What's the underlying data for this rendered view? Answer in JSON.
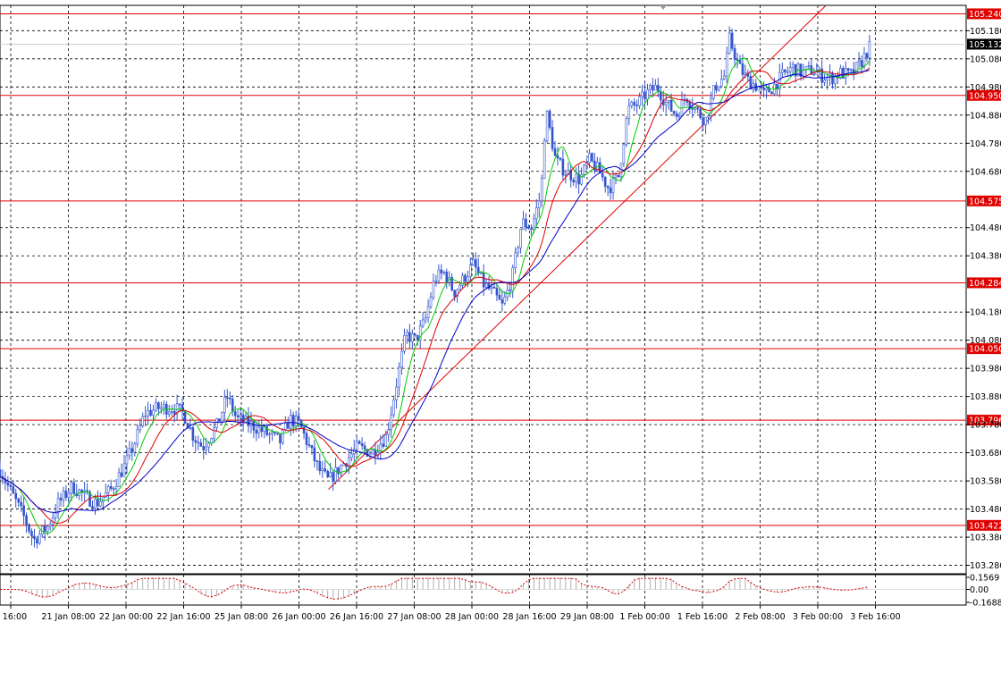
{
  "chart_data": {
    "type": "candlestick",
    "price_axis": {
      "min": 103.25,
      "max": 105.27,
      "ticks": [
        "105.180",
        "105.080",
        "104.980",
        "104.880",
        "104.780",
        "104.680",
        "104.480",
        "104.380",
        "104.180",
        "104.080",
        "103.980",
        "103.880",
        "103.780",
        "103.680",
        "103.580",
        "103.480",
        "103.380",
        "103.280"
      ]
    },
    "levels": [
      {
        "label": "105.240",
        "value": 105.24
      },
      {
        "label": "104.950",
        "value": 104.95
      },
      {
        "label": "104.575",
        "value": 104.575
      },
      {
        "label": "104.284",
        "value": 104.284
      },
      {
        "label": "104.050",
        "value": 104.05
      },
      {
        "label": "103.796",
        "value": 103.796
      },
      {
        "label": "103.422",
        "value": 103.422
      }
    ],
    "current_price": {
      "label": "105.132",
      "value": 105.132
    },
    "time_labels": [
      "20 Jan 16:00",
      "21 Jan 08:00",
      "22 Jan 00:00",
      "22 Jan 16:00",
      "25 Jan 08:00",
      "26 Jan 00:00",
      "26 Jan 16:00",
      "27 Jan 08:00",
      "28 Jan 00:00",
      "28 Jan 16:00",
      "29 Jan 08:00",
      "1 Feb 00:00",
      "1 Feb 16:00",
      "2 Feb 08:00",
      "3 Feb 00:00",
      "3 Feb 16:00"
    ],
    "oscillator": {
      "ticks": [
        "0.1569",
        "0.00",
        "-0.1688"
      ],
      "min": -0.1688,
      "max": 0.1569
    },
    "trendline": {
      "from": [
        0.34,
        103.55
      ],
      "to": [
        0.855,
        105.27
      ]
    },
    "close_path": [
      [
        0,
        103.62
      ],
      [
        0.01,
        103.55
      ],
      [
        0.025,
        103.45
      ],
      [
        0.035,
        103.37
      ],
      [
        0.05,
        103.42
      ],
      [
        0.06,
        103.5
      ],
      [
        0.075,
        103.56
      ],
      [
        0.09,
        103.52
      ],
      [
        0.1,
        103.5
      ],
      [
        0.115,
        103.55
      ],
      [
        0.13,
        103.64
      ],
      [
        0.14,
        103.72
      ],
      [
        0.15,
        103.82
      ],
      [
        0.165,
        103.84
      ],
      [
        0.18,
        103.84
      ],
      [
        0.19,
        103.82
      ],
      [
        0.2,
        103.74
      ],
      [
        0.21,
        103.7
      ],
      [
        0.225,
        103.78
      ],
      [
        0.235,
        103.88
      ],
      [
        0.245,
        103.8
      ],
      [
        0.26,
        103.78
      ],
      [
        0.275,
        103.75
      ],
      [
        0.29,
        103.72
      ],
      [
        0.3,
        103.8
      ],
      [
        0.31,
        103.78
      ],
      [
        0.32,
        103.7
      ],
      [
        0.33,
        103.62
      ],
      [
        0.34,
        103.58
      ],
      [
        0.355,
        103.64
      ],
      [
        0.37,
        103.7
      ],
      [
        0.385,
        103.68
      ],
      [
        0.4,
        103.74
      ],
      [
        0.41,
        103.92
      ],
      [
        0.42,
        104.1
      ],
      [
        0.43,
        104.08
      ],
      [
        0.44,
        104.15
      ],
      [
        0.45,
        104.3
      ],
      [
        0.46,
        104.32
      ],
      [
        0.47,
        104.25
      ],
      [
        0.48,
        104.3
      ],
      [
        0.49,
        104.35
      ],
      [
        0.5,
        104.28
      ],
      [
        0.51,
        104.25
      ],
      [
        0.52,
        104.2
      ],
      [
        0.53,
        104.3
      ],
      [
        0.54,
        104.5
      ],
      [
        0.55,
        104.48
      ],
      [
        0.56,
        104.6
      ],
      [
        0.565,
        104.9
      ],
      [
        0.575,
        104.72
      ],
      [
        0.585,
        104.68
      ],
      [
        0.6,
        104.65
      ],
      [
        0.61,
        104.72
      ],
      [
        0.62,
        104.68
      ],
      [
        0.63,
        104.62
      ],
      [
        0.64,
        104.66
      ],
      [
        0.65,
        104.9
      ],
      [
        0.66,
        104.92
      ],
      [
        0.67,
        104.96
      ],
      [
        0.68,
        104.98
      ],
      [
        0.69,
        104.92
      ],
      [
        0.7,
        104.88
      ],
      [
        0.71,
        104.95
      ],
      [
        0.72,
        104.9
      ],
      [
        0.73,
        104.86
      ],
      [
        0.74,
        104.98
      ],
      [
        0.75,
        105.02
      ],
      [
        0.755,
        105.15
      ],
      [
        0.765,
        105.05
      ],
      [
        0.775,
        105.0
      ],
      [
        0.785,
        104.98
      ],
      [
        0.79,
        104.95
      ],
      [
        0.8,
        104.98
      ],
      [
        0.81,
        105.02
      ],
      [
        0.82,
        105.05
      ],
      [
        0.83,
        105.03
      ],
      [
        0.84,
        105.04
      ],
      [
        0.85,
        105.02
      ],
      [
        0.86,
        105.01
      ],
      [
        0.87,
        105.03
      ],
      [
        0.88,
        105.02
      ],
      [
        0.89,
        105.06
      ],
      [
        0.9,
        105.12
      ]
    ]
  }
}
